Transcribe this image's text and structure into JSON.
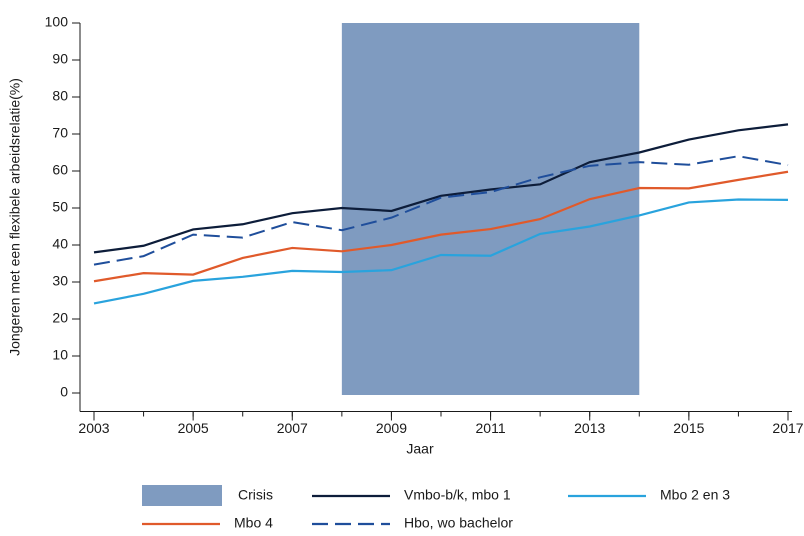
{
  "chart_data": {
    "type": "line",
    "x": [
      2003,
      2004,
      2005,
      2006,
      2007,
      2008,
      2009,
      2010,
      2011,
      2012,
      2013,
      2014,
      2015,
      2016,
      2017
    ],
    "xlabel": "Jaar",
    "ylabel": "Jongeren met een flexibele arbeidsrelatie(%)",
    "xlim": [
      2003,
      2017
    ],
    "xticks": [
      2003,
      2005,
      2007,
      2009,
      2011,
      2013,
      2015,
      2017
    ],
    "ylim": [
      -5,
      100
    ],
    "yticks": [
      0,
      10,
      20,
      30,
      40,
      50,
      60,
      70,
      80,
      90,
      100
    ],
    "shaded_region": {
      "name": "Crisis",
      "color": "#7f9bc0",
      "x": [
        2008,
        2014
      ]
    },
    "series": [
      {
        "name": "Vmbo-b/k, mbo 1",
        "color": "#0d1d3a",
        "dashed": false,
        "values": [
          38,
          39.8,
          44.2,
          45.6,
          48.6,
          50,
          49.2,
          53.3,
          55,
          56.4,
          62.4,
          65,
          68.5,
          71,
          72.6
        ]
      },
      {
        "name": "Mbo 2 en 3",
        "color": "#29a3dd",
        "dashed": false,
        "values": [
          24.2,
          26.8,
          30.3,
          31.4,
          33,
          32.7,
          33.2,
          37.3,
          37.1,
          43,
          45,
          48,
          51.5,
          52.3,
          52.2
        ]
      },
      {
        "name": "Mbo 4",
        "color": "#e05a2b",
        "dashed": false,
        "values": [
          30.2,
          32.4,
          32,
          36.5,
          39.2,
          38.3,
          40,
          42.8,
          44.3,
          47,
          52.4,
          55.4,
          55.3,
          57.6,
          59.8
        ]
      },
      {
        "name": "Hbo, wo bachelor",
        "color": "#1f4e9b",
        "dashed": true,
        "values": [
          34.7,
          37,
          42.8,
          42,
          46.2,
          44,
          47.4,
          52.8,
          54.3,
          58.3,
          61.4,
          62.4,
          61.7,
          64,
          61.6
        ]
      }
    ]
  }
}
